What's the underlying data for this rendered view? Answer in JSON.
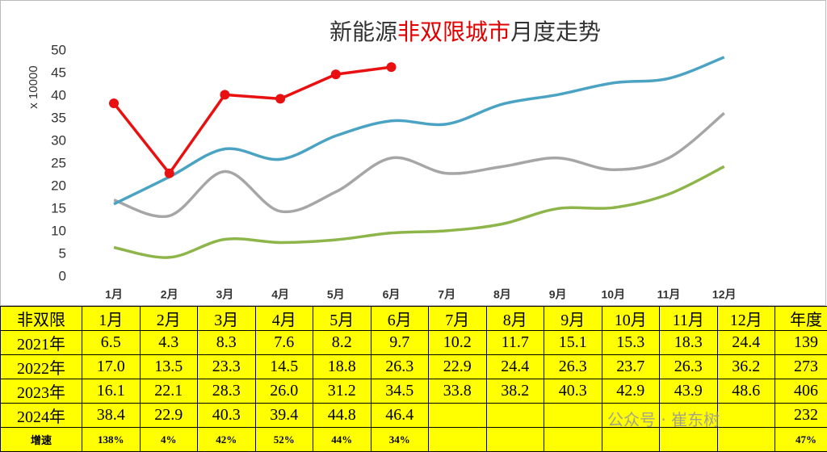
{
  "chart_data": {
    "type": "line",
    "title": [
      {
        "text": "新能源",
        "color": "#333333"
      },
      {
        "text": "非双限城市",
        "color": "#e00000"
      },
      {
        "text": "月度走势",
        "color": "#333333"
      }
    ],
    "y_label": "x 10000",
    "categories": [
      "1月",
      "2月",
      "3月",
      "4月",
      "5月",
      "6月",
      "7月",
      "8月",
      "9月",
      "10月",
      "11月",
      "12月"
    ],
    "ylim": [
      0,
      50
    ],
    "yticks": [
      0,
      5,
      10,
      15,
      20,
      25,
      30,
      35,
      40,
      45,
      50
    ],
    "series": [
      {
        "color": "#8db54a",
        "smooth": true,
        "values": [
          6.5,
          4.3,
          8.3,
          7.6,
          8.2,
          9.7,
          10.2,
          11.7,
          15.1,
          15.3,
          18.3,
          24.4
        ]
      },
      {
        "color": "#a6a6a6",
        "smooth": true,
        "values": [
          17.0,
          13.5,
          23.3,
          14.5,
          18.8,
          26.3,
          22.9,
          24.4,
          26.3,
          23.7,
          26.3,
          36.2
        ]
      },
      {
        "color": "#4ba3c3",
        "smooth": true,
        "values": [
          16.1,
          22.1,
          28.3,
          26.0,
          31.2,
          34.5,
          33.8,
          38.2,
          40.3,
          42.9,
          43.9,
          48.6
        ]
      },
      {
        "color": "#e81010",
        "smooth": false,
        "markers": true,
        "values": [
          38.4,
          22.9,
          40.3,
          39.4,
          44.8,
          46.4,
          null,
          null,
          null,
          null,
          null,
          null
        ]
      }
    ]
  },
  "table": {
    "header": [
      "非双限",
      "1月",
      "2月",
      "3月",
      "4月",
      "5月",
      "6月",
      "7月",
      "8月",
      "9月",
      "10月",
      "11月",
      "12月",
      "年度"
    ],
    "rows": [
      [
        "2021年",
        "6.5",
        "4.3",
        "8.3",
        "7.6",
        "8.2",
        "9.7",
        "10.2",
        "11.7",
        "15.1",
        "15.3",
        "18.3",
        "24.4",
        "139"
      ],
      [
        "2022年",
        "17.0",
        "13.5",
        "23.3",
        "14.5",
        "18.8",
        "26.3",
        "22.9",
        "24.4",
        "26.3",
        "23.7",
        "26.3",
        "36.2",
        "273"
      ],
      [
        "2023年",
        "16.1",
        "22.1",
        "28.3",
        "26.0",
        "31.2",
        "34.5",
        "33.8",
        "38.2",
        "40.3",
        "42.9",
        "43.9",
        "48.6",
        "406"
      ],
      [
        "2024年",
        "38.4",
        "22.9",
        "40.3",
        "39.4",
        "44.8",
        "46.4",
        null,
        null,
        null,
        null,
        null,
        null,
        "232"
      ]
    ],
    "growth": [
      "增速",
      "138%",
      "4%",
      "42%",
      "52%",
      "44%",
      "34%",
      null,
      null,
      null,
      null,
      null,
      null,
      "47%"
    ]
  },
  "watermark": "公众号 · 崔东树"
}
